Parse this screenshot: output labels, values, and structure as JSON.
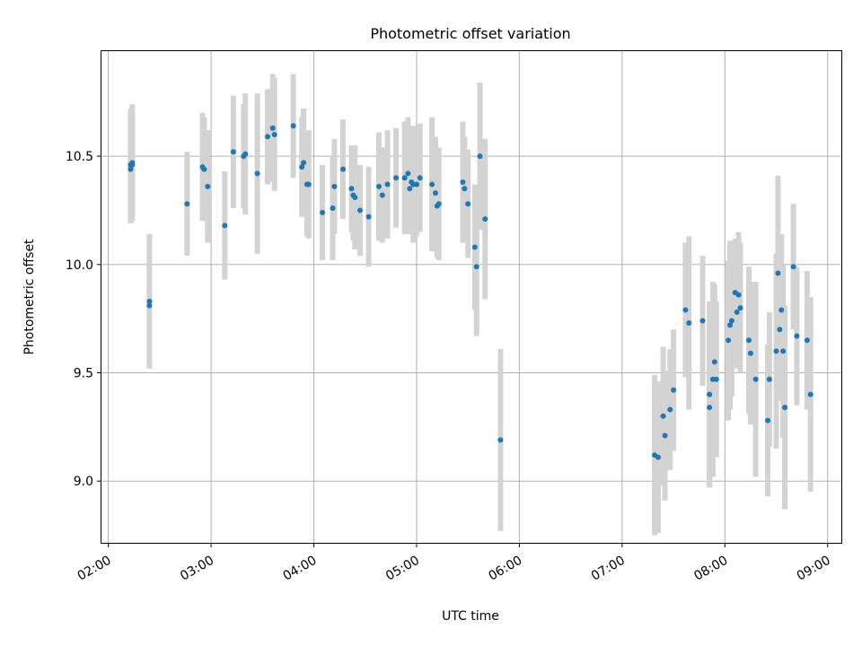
{
  "chart_data": {
    "type": "scatter",
    "title": "Photometric offset variation",
    "xlabel": "UTC time",
    "ylabel": "Photometric offset",
    "x_unit": "UTC hh:mm",
    "xlim": [
      "01:56",
      "09:08"
    ],
    "ylim": [
      8.715,
      10.985
    ],
    "xticks": [
      "02:00",
      "03:00",
      "04:00",
      "05:00",
      "06:00",
      "07:00",
      "08:00",
      "09:00"
    ],
    "yticks": [
      9.0,
      9.5,
      10.0,
      10.5
    ],
    "ytick_labels": [
      "9.0",
      "9.5",
      "10.0",
      "10.5"
    ],
    "grid": true,
    "legend": "none",
    "colors": {
      "point": "#1f77b4",
      "errorbar": "#d3d3d3",
      "grid": "#b0b0b0",
      "axes": "#000000"
    },
    "series": [
      {
        "marker": "point",
        "error_bars": "symmetric vertical",
        "points": [
          {
            "x": "02:13",
            "y": 10.46,
            "err": 0.26
          },
          {
            "x": "02:13",
            "y": 10.44,
            "err": 0.25
          },
          {
            "x": "02:14",
            "y": 10.47,
            "err": 0.27
          },
          {
            "x": "02:14",
            "y": 10.46,
            "err": 0.24
          },
          {
            "x": "02:24",
            "y": 9.83,
            "err": 0.31
          },
          {
            "x": "02:24",
            "y": 9.81,
            "err": 0.29
          },
          {
            "x": "02:46",
            "y": 10.28,
            "err": 0.24
          },
          {
            "x": "02:55",
            "y": 10.45,
            "err": 0.25
          },
          {
            "x": "02:56",
            "y": 10.44,
            "err": 0.24
          },
          {
            "x": "02:58",
            "y": 10.36,
            "err": 0.26
          },
          {
            "x": "03:08",
            "y": 10.18,
            "err": 0.25
          },
          {
            "x": "03:13",
            "y": 10.52,
            "err": 0.26
          },
          {
            "x": "03:19",
            "y": 10.5,
            "err": 0.24
          },
          {
            "x": "03:20",
            "y": 10.51,
            "err": 0.28
          },
          {
            "x": "03:27",
            "y": 10.42,
            "err": 0.37
          },
          {
            "x": "03:33",
            "y": 10.59,
            "err": 0.22
          },
          {
            "x": "03:36",
            "y": 10.63,
            "err": 0.25
          },
          {
            "x": "03:37",
            "y": 10.6,
            "err": 0.26
          },
          {
            "x": "03:48",
            "y": 10.64,
            "err": 0.24
          },
          {
            "x": "03:53",
            "y": 10.45,
            "err": 0.23
          },
          {
            "x": "03:54",
            "y": 10.47,
            "err": 0.25
          },
          {
            "x": "03:56",
            "y": 10.37,
            "err": 0.24
          },
          {
            "x": "03:57",
            "y": 10.37,
            "err": 0.25
          },
          {
            "x": "04:05",
            "y": 10.24,
            "err": 0.22
          },
          {
            "x": "04:11",
            "y": 10.26,
            "err": 0.24
          },
          {
            "x": "04:12",
            "y": 10.36,
            "err": 0.22
          },
          {
            "x": "04:17",
            "y": 10.44,
            "err": 0.23
          },
          {
            "x": "04:22",
            "y": 10.35,
            "err": 0.2
          },
          {
            "x": "04:23",
            "y": 10.32,
            "err": 0.21
          },
          {
            "x": "04:24",
            "y": 10.31,
            "err": 0.24
          },
          {
            "x": "04:27",
            "y": 10.25,
            "err": 0.21
          },
          {
            "x": "04:32",
            "y": 10.22,
            "err": 0.23
          },
          {
            "x": "04:38",
            "y": 10.36,
            "err": 0.25
          },
          {
            "x": "04:40",
            "y": 10.32,
            "err": 0.22
          },
          {
            "x": "04:43",
            "y": 10.37,
            "err": 0.25
          },
          {
            "x": "04:48",
            "y": 10.4,
            "err": 0.23
          },
          {
            "x": "04:53",
            "y": 10.4,
            "err": 0.26
          },
          {
            "x": "04:55",
            "y": 10.42,
            "err": 0.26
          },
          {
            "x": "04:56",
            "y": 10.35,
            "err": 0.21
          },
          {
            "x": "04:57",
            "y": 10.38,
            "err": 0.24
          },
          {
            "x": "04:58",
            "y": 10.37,
            "err": 0.27
          },
          {
            "x": "05:00",
            "y": 10.37,
            "err": 0.24
          },
          {
            "x": "05:02",
            "y": 10.4,
            "err": 0.25
          },
          {
            "x": "05:09",
            "y": 10.37,
            "err": 0.31
          },
          {
            "x": "05:11",
            "y": 10.33,
            "err": 0.26
          },
          {
            "x": "05:12",
            "y": 10.27,
            "err": 0.24
          },
          {
            "x": "05:13",
            "y": 10.28,
            "err": 0.26
          },
          {
            "x": "05:27",
            "y": 10.38,
            "err": 0.28
          },
          {
            "x": "05:28",
            "y": 10.35,
            "err": 0.24
          },
          {
            "x": "05:30",
            "y": 10.28,
            "err": 0.25
          },
          {
            "x": "05:34",
            "y": 10.08,
            "err": 0.29
          },
          {
            "x": "05:35",
            "y": 9.99,
            "err": 0.32
          },
          {
            "x": "05:37",
            "y": 10.5,
            "err": 0.34
          },
          {
            "x": "05:40",
            "y": 10.21,
            "err": 0.37
          },
          {
            "x": "05:49",
            "y": 9.19,
            "err": 0.42
          },
          {
            "x": "07:19",
            "y": 9.12,
            "err": 0.37
          },
          {
            "x": "07:21",
            "y": 9.11,
            "err": 0.35
          },
          {
            "x": "07:24",
            "y": 9.3,
            "err": 0.32
          },
          {
            "x": "07:25",
            "y": 9.21,
            "err": 0.3
          },
          {
            "x": "07:28",
            "y": 9.33,
            "err": 0.28
          },
          {
            "x": "07:30",
            "y": 9.42,
            "err": 0.28
          },
          {
            "x": "07:37",
            "y": 9.79,
            "err": 0.31
          },
          {
            "x": "07:39",
            "y": 9.73,
            "err": 0.4
          },
          {
            "x": "07:47",
            "y": 9.74,
            "err": 0.3
          },
          {
            "x": "07:51",
            "y": 9.34,
            "err": 0.37
          },
          {
            "x": "07:51",
            "y": 9.4,
            "err": 0.43
          },
          {
            "x": "07:53",
            "y": 9.47,
            "err": 0.45
          },
          {
            "x": "07:54",
            "y": 9.55,
            "err": 0.36
          },
          {
            "x": "07:55",
            "y": 9.47,
            "err": 0.36
          },
          {
            "x": "08:02",
            "y": 9.65,
            "err": 0.37
          },
          {
            "x": "08:03",
            "y": 9.72,
            "err": 0.39
          },
          {
            "x": "08:04",
            "y": 9.74,
            "err": 0.35
          },
          {
            "x": "08:06",
            "y": 9.87,
            "err": 0.25
          },
          {
            "x": "08:07",
            "y": 9.78,
            "err": 0.26
          },
          {
            "x": "08:08",
            "y": 9.86,
            "err": 0.29
          },
          {
            "x": "08:09",
            "y": 9.8,
            "err": 0.3
          },
          {
            "x": "08:14",
            "y": 9.65,
            "err": 0.34
          },
          {
            "x": "08:15",
            "y": 9.59,
            "err": 0.33
          },
          {
            "x": "08:18",
            "y": 9.47,
            "err": 0.45
          },
          {
            "x": "08:25",
            "y": 9.28,
            "err": 0.35
          },
          {
            "x": "08:26",
            "y": 9.47,
            "err": 0.31
          },
          {
            "x": "08:30",
            "y": 9.6,
            "err": 0.45
          },
          {
            "x": "08:31",
            "y": 9.96,
            "err": 0.45
          },
          {
            "x": "08:32",
            "y": 9.7,
            "err": 0.33
          },
          {
            "x": "08:33",
            "y": 9.79,
            "err": 0.35
          },
          {
            "x": "08:34",
            "y": 9.6,
            "err": 0.4
          },
          {
            "x": "08:35",
            "y": 9.34,
            "err": 0.47
          },
          {
            "x": "08:40",
            "y": 9.99,
            "err": 0.29
          },
          {
            "x": "08:42",
            "y": 9.67,
            "err": 0.32
          },
          {
            "x": "08:48",
            "y": 9.65,
            "err": 0.32
          },
          {
            "x": "08:50",
            "y": 9.4,
            "err": 0.45
          }
        ]
      }
    ]
  }
}
